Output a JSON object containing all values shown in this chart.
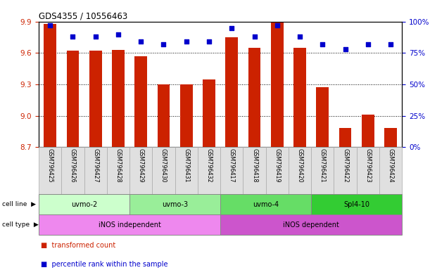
{
  "title": "GDS4355 / 10556463",
  "samples": [
    "GSM796425",
    "GSM796426",
    "GSM796427",
    "GSM796428",
    "GSM796429",
    "GSM796430",
    "GSM796431",
    "GSM796432",
    "GSM796417",
    "GSM796418",
    "GSM796419",
    "GSM796420",
    "GSM796421",
    "GSM796422",
    "GSM796423",
    "GSM796424"
  ],
  "bar_values": [
    9.88,
    9.62,
    9.62,
    9.63,
    9.57,
    9.3,
    9.3,
    9.35,
    9.75,
    9.65,
    9.9,
    9.65,
    9.27,
    8.88,
    9.01,
    8.88
  ],
  "dot_values": [
    97,
    88,
    88,
    90,
    84,
    82,
    84,
    84,
    95,
    88,
    97,
    88,
    82,
    78,
    82,
    82
  ],
  "ylim_left": [
    8.7,
    9.9
  ],
  "ylim_right": [
    0,
    100
  ],
  "yticks_left": [
    8.7,
    9.0,
    9.3,
    9.6,
    9.9
  ],
  "yticks_right": [
    0,
    25,
    50,
    75,
    100
  ],
  "ytick_labels_right": [
    "0%",
    "25%",
    "50%",
    "75%",
    "100%"
  ],
  "bar_color": "#cc2200",
  "dot_color": "#0000cc",
  "bar_bottom": 8.7,
  "cell_lines": [
    {
      "label": "uvmo-2",
      "start": 0,
      "end": 4,
      "color": "#ccffcc"
    },
    {
      "label": "uvmo-3",
      "start": 4,
      "end": 8,
      "color": "#99ee99"
    },
    {
      "label": "uvmo-4",
      "start": 8,
      "end": 12,
      "color": "#66dd66"
    },
    {
      "label": "Spl4-10",
      "start": 12,
      "end": 16,
      "color": "#33cc33"
    }
  ],
  "cell_types": [
    {
      "label": "iNOS independent",
      "start": 0,
      "end": 8,
      "color": "#ee88ee"
    },
    {
      "label": "iNOS dependent",
      "start": 8,
      "end": 16,
      "color": "#cc55cc"
    }
  ],
  "legend_bar_label": "transformed count",
  "legend_dot_label": "percentile rank within the sample",
  "cell_line_label": "cell line",
  "cell_type_label": "cell type",
  "tick_label_color_left": "#cc2200",
  "tick_label_color_right": "#0000cc",
  "xticklabel_bg": "#e0e0e0"
}
